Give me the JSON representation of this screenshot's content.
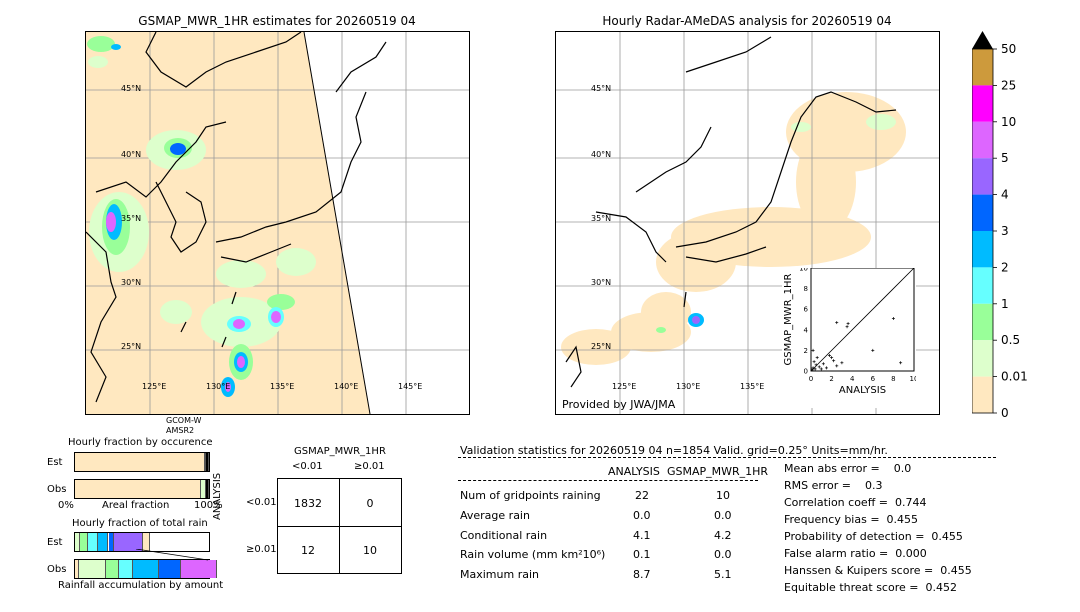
{
  "left_map": {
    "title": "GSMAP_MWR_1HR estimates for 20260519 04",
    "lat_labels": [
      "45°N",
      "40°N",
      "35°N",
      "30°N",
      "25°N"
    ],
    "lon_labels": [
      "125°E",
      "130°E",
      "135°E",
      "140°E",
      "145°E"
    ],
    "satellite_line1": "GCOM-W",
    "satellite_line2": "AMSR2"
  },
  "right_map": {
    "title": "Hourly Radar-AMeDAS analysis for 20260519 04",
    "lat_labels": [
      "45°N",
      "40°N",
      "35°N",
      "30°N",
      "25°N"
    ],
    "lon_labels": [
      "125°E",
      "130°E",
      "135°E"
    ],
    "provider": "Provided by JWA/JMA"
  },
  "colorbar": {
    "labels": [
      "50",
      "25",
      "10",
      "5",
      "4",
      "3",
      "2",
      "1",
      "0.5",
      "0.01",
      "0"
    ],
    "colors": [
      "#cd9a3c",
      "#ff00ff",
      "#dd66ff",
      "#9966ff",
      "#0066ff",
      "#00bbff",
      "#66ffff",
      "#99ff99",
      "#ddffcc",
      "#ffe8c0"
    ]
  },
  "chart_data": [
    {
      "type": "scatter",
      "xlabel": "ANALYSIS",
      "ylabel": "GSMAP_MWR_1HR",
      "xlim": [
        0,
        10
      ],
      "ylim": [
        0,
        10
      ],
      "ticks": [
        "0",
        "2",
        "4",
        "6",
        "8",
        "10"
      ],
      "points": [
        {
          "x": 0.1,
          "y": 0.1
        },
        {
          "x": 0.2,
          "y": 0.3
        },
        {
          "x": 0.4,
          "y": 0.2
        },
        {
          "x": 0.5,
          "y": 0.6
        },
        {
          "x": 0.3,
          "y": 0.9
        },
        {
          "x": 0.8,
          "y": 0.4
        },
        {
          "x": 1.0,
          "y": 0.2
        },
        {
          "x": 1.2,
          "y": 0.7
        },
        {
          "x": 0.6,
          "y": 1.3
        },
        {
          "x": 1.5,
          "y": 0.3
        },
        {
          "x": 2.0,
          "y": 1.3
        },
        {
          "x": 2.2,
          "y": 1.0
        },
        {
          "x": 2.5,
          "y": 0.5
        },
        {
          "x": 3.0,
          "y": 0.8
        },
        {
          "x": 2.5,
          "y": 4.7
        },
        {
          "x": 3.6,
          "y": 4.6
        },
        {
          "x": 3.5,
          "y": 4.3
        },
        {
          "x": 6.0,
          "y": 2.0
        },
        {
          "x": 8.0,
          "y": 5.1
        },
        {
          "x": 8.7,
          "y": 0.8
        },
        {
          "x": 1.8,
          "y": 1.5
        },
        {
          "x": 0.2,
          "y": 2.0
        }
      ]
    },
    {
      "type": "table",
      "title": "Validation statistics for 20260519 04  n=1854 Valid. grid=0.25° Units=mm/hr.",
      "columns": [
        "ANALYSIS",
        "GSMAP_MWR_1HR"
      ],
      "rows": [
        {
          "label": "Num of gridpoints raining",
          "analysis": "22",
          "gsmap": "10"
        },
        {
          "label": "Average rain",
          "analysis": "0.0",
          "gsmap": "0.0"
        },
        {
          "label": "Conditional rain",
          "analysis": "4.1",
          "gsmap": "4.2"
        },
        {
          "label": "Rain volume (mm km²10⁶)",
          "analysis": "0.1",
          "gsmap": "0.0"
        },
        {
          "label": "Maximum rain",
          "analysis": "8.7",
          "gsmap": "5.1"
        }
      ],
      "scores": [
        "Mean abs error =    0.0",
        "RMS error =    0.3",
        "Correlation coeff =  0.744",
        "Frequency bias =  0.455",
        "Probability of detection =  0.455",
        "False alarm ratio =  0.000",
        "Hanssen & Kuipers score =  0.455",
        "Equitable threat score =  0.452"
      ]
    },
    {
      "type": "table",
      "title": "GSMAP_MWR_1HR",
      "col_headers": [
        "<0.01",
        "≥0.01"
      ],
      "row_axis_label": "ANALYSIS",
      "row_headers": [
        "<0.01",
        "≥0.01"
      ],
      "cells": [
        [
          "1832",
          "0"
        ],
        [
          "12",
          "10"
        ]
      ]
    },
    {
      "type": "bar",
      "title": "Hourly fraction by occurence",
      "categories": [
        "Est",
        "Obs"
      ],
      "xlabel": "Areal fraction",
      "xtick_left": "0%",
      "xtick_right": "100%",
      "series": [
        {
          "values": [
            0.97,
            0.94
          ],
          "color": "#ffe8c0"
        },
        {
          "values": [
            0.01,
            0.04
          ],
          "color": "#ddffcc"
        },
        {
          "values": [
            0.02,
            0.02
          ],
          "color": "#000000"
        }
      ]
    },
    {
      "type": "bar",
      "title": "Hourly fraction of total rain",
      "categories": [
        "Est",
        "Obs"
      ],
      "xlabel": "Rainfall accumulation by amount",
      "segments": {
        "Est": [
          {
            "value": 0.04,
            "color": "#ddffcc"
          },
          {
            "value": 0.06,
            "color": "#99ff99"
          },
          {
            "value": 0.07,
            "color": "#66ffff"
          },
          {
            "value": 0.08,
            "color": "#00bbff"
          },
          {
            "value": 0.04,
            "color": "#0066ff"
          },
          {
            "value": 0.22,
            "color": "#9966ff"
          },
          {
            "value": 0.05,
            "color": "#ffe8c0"
          }
        ],
        "Obs": [
          {
            "value": 0.03,
            "color": "#ffe8c0"
          },
          {
            "value": 0.2,
            "color": "#ddffcc"
          },
          {
            "value": 0.1,
            "color": "#99ff99"
          },
          {
            "value": 0.1,
            "color": "#66ffff"
          },
          {
            "value": 0.2,
            "color": "#00bbff"
          },
          {
            "value": 0.16,
            "color": "#0066ff"
          },
          {
            "value": 0.27,
            "color": "#dd66ff"
          }
        ]
      }
    }
  ]
}
